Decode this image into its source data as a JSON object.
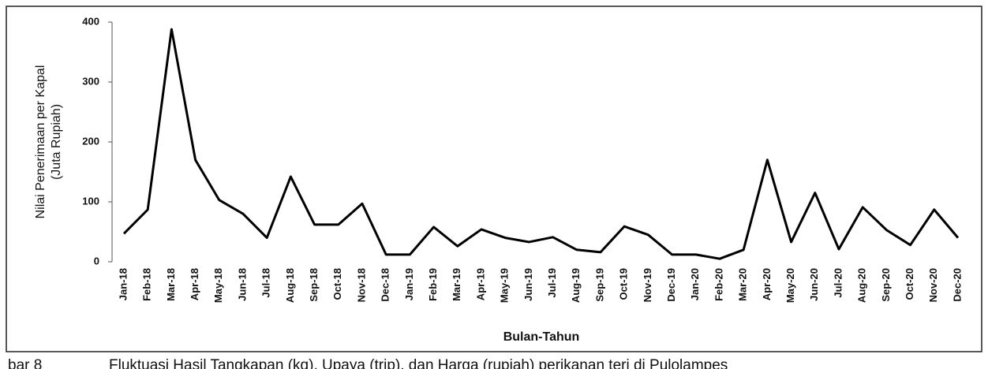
{
  "chart_data": {
    "type": "line",
    "y_label": [
      "Nilai Penerimaan per Kapal",
      "(Juta Rupiah)"
    ],
    "x_label": "Bulan-Tahun",
    "categories": [
      "Jan-18",
      "Feb-18",
      "Mar-18",
      "Apr-18",
      "May-18",
      "Jun-18",
      "Jul-18",
      "Aug-18",
      "Sep-18",
      "Oct-18",
      "Nov-18",
      "Dec-18",
      "Jan-19",
      "Feb-19",
      "Mar-19",
      "Apr-19",
      "May-19",
      "Jun-19",
      "Jul-19",
      "Aug-19",
      "Sep-19",
      "Oct-19",
      "Nov-19",
      "Dec-19",
      "Jan-20",
      "Feb-20",
      "Mar-20",
      "Apr-20",
      "May-20",
      "Jun-20",
      "Jul-20",
      "Aug-20",
      "Sep-20",
      "Oct-20",
      "Nov-20",
      "Dec-20"
    ],
    "values": [
      47,
      87,
      388,
      170,
      103,
      80,
      40,
      142,
      62,
      62,
      97,
      12,
      12,
      58,
      26,
      54,
      40,
      33,
      41,
      20,
      16,
      59,
      45,
      12,
      12,
      5,
      20,
      170,
      33,
      115,
      21,
      91,
      53,
      28,
      87,
      40
    ],
    "color": "#000000",
    "ylim": [
      0,
      400
    ],
    "yticks": [
      0,
      100,
      200,
      300,
      400
    ]
  },
  "caption": {
    "number": "bar 8",
    "text": "Fluktuasi Hasil Tangkapan (kg), Upaya (trip), dan Harga (rupiah) perikanan teri di Pulolampes"
  }
}
